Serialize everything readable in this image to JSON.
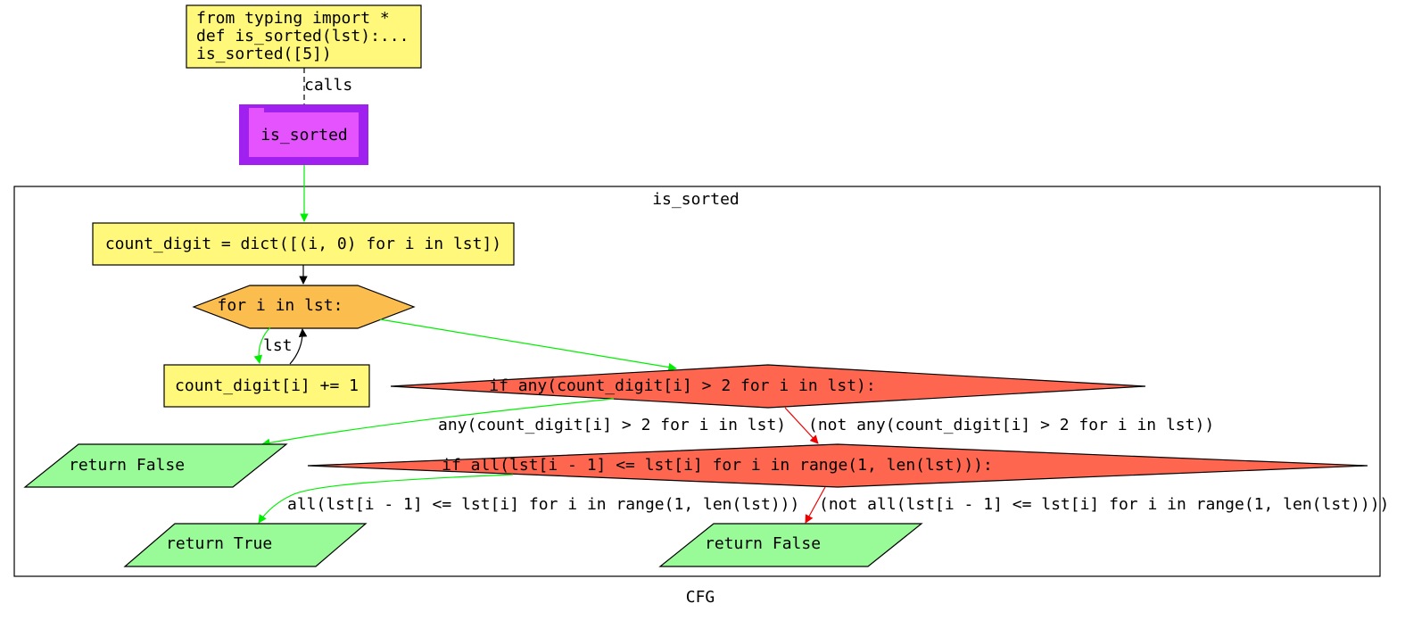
{
  "diagram": {
    "caption": "CFG",
    "cluster_label": "is_sorted",
    "colors": {
      "statement": "#fff87b",
      "loop": "#fbbd4d",
      "condition": "#ff6650",
      "return": "#98fb98",
      "call_outer": "#a020f0",
      "call_inner": "#e553ff",
      "edge_default": "#000000",
      "edge_true": "#00ee00",
      "edge_false": "#ee0000"
    },
    "nodes": {
      "entry": {
        "lines": [
          "from typing import *",
          "def is_sorted(lst):...",
          "is_sorted([5])"
        ]
      },
      "call": {
        "label": "is_sorted"
      },
      "init": {
        "label": "count_digit = dict([(i, 0) for i in lst])"
      },
      "loop": {
        "label": "for i in lst:"
      },
      "increment": {
        "label": "count_digit[i] += 1"
      },
      "cond1": {
        "label": "if any(count_digit[i] > 2 for i in lst):"
      },
      "ret_false1": {
        "label": "return False"
      },
      "cond2": {
        "label": "if all(lst[i - 1] <= lst[i] for i in range(1, len(lst))):"
      },
      "ret_true": {
        "label": "return True"
      },
      "ret_false2": {
        "label": "return False"
      }
    },
    "edges": {
      "calls": "calls",
      "loop_body": "lst",
      "cond1_true": "any(count_digit[i] > 2 for i in lst)",
      "cond1_false": "(not any(count_digit[i] > 2 for i in lst))",
      "cond2_true": "all(lst[i - 1] <= lst[i] for i in range(1, len(lst)))",
      "cond2_false": "(not all(lst[i - 1] <= lst[i] for i in range(1, len(lst))))"
    }
  }
}
